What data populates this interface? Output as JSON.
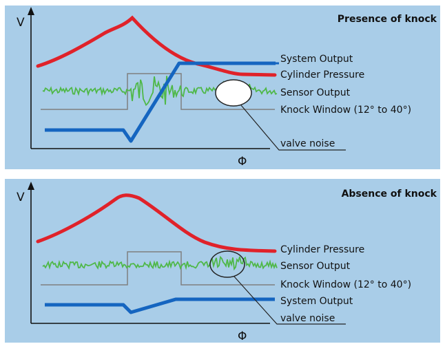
{
  "diagram": {
    "axis_y_label": "V",
    "axis_x_label": "Φ",
    "colors": {
      "background": "#a9cde8",
      "cylinder_pressure": "#e0222a",
      "system_output": "#1565c0",
      "sensor_output": "#4fb848",
      "knock_window": "#7f7f7f",
      "leader": "#222222"
    },
    "panels": [
      {
        "title": "Presence of knock",
        "labels": {
          "system_output": "System Output",
          "cylinder_pressure": "Cylinder Pressure",
          "sensor_output": "Sensor Output",
          "knock_window": "Knock Window (12° to 40°)",
          "valve_noise": "valve noise"
        }
      },
      {
        "title": "Absence of knock",
        "labels": {
          "cylinder_pressure": "Cylinder Pressure",
          "sensor_output": "Sensor Output",
          "knock_window": "Knock Window (12° to 40°)",
          "system_output": "System Output",
          "valve_noise": "valve noise"
        }
      }
    ]
  }
}
